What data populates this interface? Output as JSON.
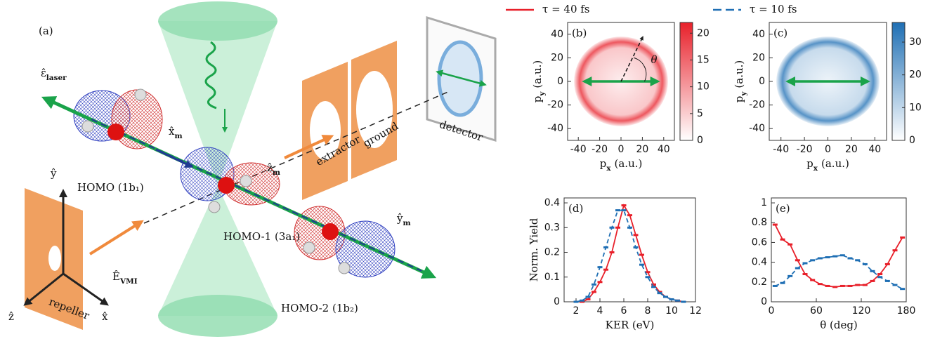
{
  "diagram": {
    "labels": [
      {
        "text": "(a)"
      },
      {
        "text": "ε̂",
        "sub": "laser"
      },
      {
        "text": "x̂",
        "sub": "m"
      },
      {
        "text": "ẑ",
        "sub": "m"
      },
      {
        "text": "ŷ",
        "sub": "m"
      },
      {
        "text": "ŷ"
      },
      {
        "text": "ẑ"
      },
      {
        "text": "x̂"
      },
      {
        "text": "HOMO (1b₁)"
      },
      {
        "text": "HOMO-1 (3a₁)"
      },
      {
        "text": "HOMO-2 (1b₂)"
      },
      {
        "text": "Ê",
        "sub": "VMI"
      },
      {
        "text": "repeller"
      },
      {
        "text": "extractor"
      },
      {
        "text": "ground"
      },
      {
        "text": "detector"
      }
    ]
  },
  "chart_data": [
    {
      "type": "heatmap",
      "panel": "(b)",
      "annotation": "θ",
      "xlabel": {
        "base": "p",
        "sub": "x",
        "unit": "(a.u.)"
      },
      "ylabel": {
        "base": "p",
        "sub": "y",
        "unit": "(a.u.)"
      },
      "xlim": [
        -50,
        50
      ],
      "ylim": [
        -50,
        50
      ],
      "xticks": [
        -40,
        -20,
        0,
        20,
        40
      ],
      "yticks": [
        -40,
        -20,
        0,
        20,
        40
      ],
      "clim": [
        0,
        22
      ],
      "cticks": [
        0,
        5,
        10,
        15,
        20
      ],
      "colormap": [
        "#ffffff",
        "#e8202a"
      ]
    },
    {
      "type": "heatmap",
      "panel": "(c)",
      "xlabel": {
        "base": "p",
        "sub": "x",
        "unit": "(a.u.)"
      },
      "ylabel": {
        "base": "p",
        "sub": "y",
        "unit": "(a.u.)"
      },
      "xlim": [
        -50,
        50
      ],
      "ylim": [
        -50,
        50
      ],
      "xticks": [
        -40,
        -20,
        0,
        20,
        40
      ],
      "yticks": [
        -40,
        -20,
        0,
        20,
        40
      ],
      "clim": [
        0,
        36
      ],
      "cticks": [
        0,
        10,
        20,
        30
      ],
      "colormap": [
        "#ffffff",
        "#1f6fb4"
      ]
    },
    {
      "type": "line",
      "panel": "(d)",
      "xlabel": "KER (eV)",
      "ylabel": "Norm. Yield",
      "xlim": [
        1,
        12
      ],
      "ylim": [
        0,
        0.42
      ],
      "xticks": [
        2,
        4,
        6,
        8,
        10,
        12
      ],
      "yticks": [
        0,
        0.1,
        0.2,
        0.3,
        0.4
      ],
      "x": [
        2,
        2.5,
        3,
        3.5,
        4,
        4.5,
        5,
        5.5,
        6,
        6.5,
        7,
        7.5,
        8,
        8.5,
        9,
        9.5,
        10,
        10.5,
        11
      ],
      "series": [
        {
          "name": "τ = 40 fs",
          "color": "#e8202a",
          "dash": false,
          "values": [
            0,
            0,
            0.01,
            0.04,
            0.08,
            0.13,
            0.2,
            0.3,
            0.39,
            0.35,
            0.27,
            0.19,
            0.12,
            0.07,
            0.04,
            0.02,
            0.01,
            0.005,
            0
          ]
        },
        {
          "name": "τ = 10 fs",
          "color": "#1f6fb4",
          "dash": true,
          "values": [
            0,
            0.005,
            0.02,
            0.07,
            0.14,
            0.22,
            0.3,
            0.37,
            0.37,
            0.3,
            0.22,
            0.15,
            0.1,
            0.06,
            0.035,
            0.02,
            0.01,
            0.005,
            0
          ]
        }
      ]
    },
    {
      "type": "line",
      "panel": "(e)",
      "xlabel": "θ (deg)",
      "xlim": [
        0,
        180
      ],
      "ylim": [
        0,
        1.05
      ],
      "xticks": [
        0,
        60,
        120,
        180
      ],
      "yticks": [
        0,
        0.2,
        0.4,
        0.6,
        0.8,
        1
      ],
      "x": [
        5,
        15,
        25,
        35,
        45,
        55,
        65,
        75,
        85,
        95,
        105,
        115,
        125,
        135,
        145,
        155,
        165,
        175
      ],
      "series": [
        {
          "color": "#e8202a",
          "dash": false,
          "values": [
            0.78,
            0.63,
            0.58,
            0.42,
            0.28,
            0.22,
            0.18,
            0.16,
            0.15,
            0.16,
            0.16,
            0.17,
            0.17,
            0.21,
            0.28,
            0.38,
            0.52,
            0.65
          ]
        },
        {
          "color": "#1f6fb4",
          "dash": true,
          "values": [
            0.16,
            0.19,
            0.26,
            0.34,
            0.39,
            0.42,
            0.44,
            0.45,
            0.46,
            0.47,
            0.44,
            0.42,
            0.38,
            0.31,
            0.25,
            0.21,
            0.17,
            0.13
          ]
        }
      ]
    }
  ]
}
